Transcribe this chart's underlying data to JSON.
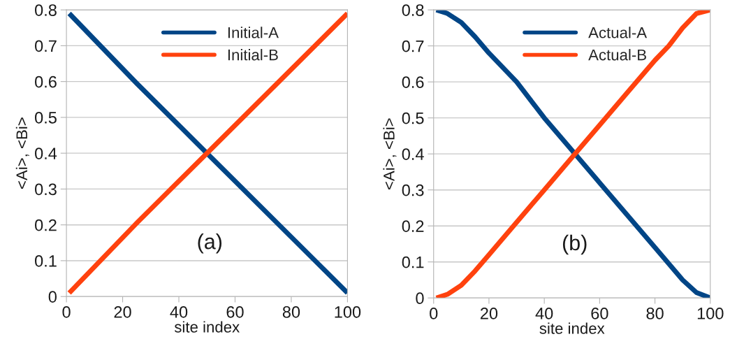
{
  "chart_data": [
    {
      "type": "line",
      "xlabel": "site index",
      "ylabel": "<Ai>, <Bi>",
      "annotations": [
        "(a)"
      ],
      "xlim": [
        0,
        100
      ],
      "ylim": [
        0,
        0.8
      ],
      "xticks": [
        0,
        20,
        40,
        60,
        80,
        100
      ],
      "yticks": [
        0,
        0.1,
        0.2,
        0.3,
        0.4,
        0.5,
        0.6,
        0.7,
        0.8
      ],
      "grid": "y",
      "legend": "top",
      "series": [
        {
          "name": "Initial-A",
          "color": "#004586",
          "x": [
            1,
            25,
            50,
            75,
            100
          ],
          "values": [
            0.79,
            0.595,
            0.4,
            0.205,
            0.01
          ]
        },
        {
          "name": "Initial-B",
          "color": "#ff420e",
          "x": [
            1,
            25,
            50,
            75,
            100
          ],
          "values": [
            0.01,
            0.205,
            0.4,
            0.595,
            0.79
          ]
        }
      ]
    },
    {
      "type": "line",
      "xlabel": "site index",
      "ylabel": "<Ai>, <Bi>",
      "annotations": [
        "(b)"
      ],
      "xlim": [
        0,
        100
      ],
      "ylim": [
        0,
        0.8
      ],
      "xticks": [
        0,
        20,
        40,
        60,
        80,
        100
      ],
      "yticks": [
        0,
        0.1,
        0.2,
        0.3,
        0.4,
        0.5,
        0.6,
        0.7,
        0.8
      ],
      "grid": "y",
      "legend": "top",
      "series": [
        {
          "name": "Actual-A",
          "color": "#004586",
          "x": [
            1,
            5,
            10,
            15,
            20,
            30,
            40,
            50,
            60,
            70,
            80,
            85,
            90,
            95,
            100
          ],
          "values": [
            0.8,
            0.79,
            0.765,
            0.725,
            0.68,
            0.6,
            0.5,
            0.41,
            0.32,
            0.23,
            0.14,
            0.095,
            0.05,
            0.015,
            0.0
          ]
        },
        {
          "name": "Actual-B",
          "color": "#ff420e",
          "x": [
            1,
            5,
            10,
            15,
            20,
            30,
            40,
            50,
            60,
            70,
            80,
            85,
            90,
            95,
            100
          ],
          "values": [
            0.0,
            0.01,
            0.035,
            0.075,
            0.12,
            0.21,
            0.3,
            0.39,
            0.48,
            0.57,
            0.66,
            0.7,
            0.75,
            0.79,
            0.8
          ]
        }
      ]
    }
  ]
}
